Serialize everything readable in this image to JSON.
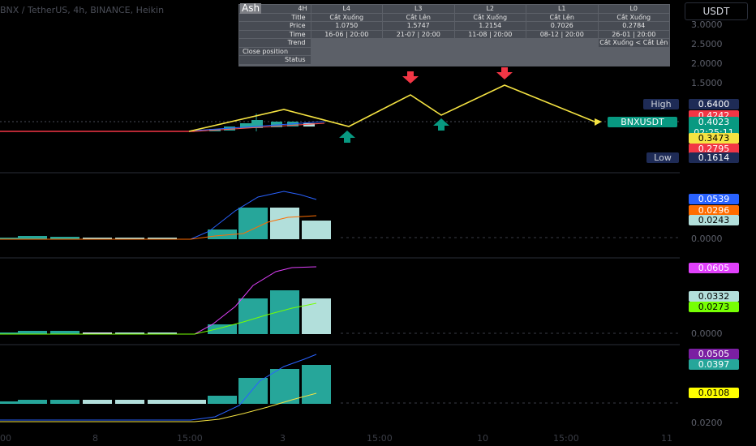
{
  "header": {
    "symbol_line": "BNX / TetherUS, 4h, BINANCE, Heikin",
    "timeframe_cell": "4H",
    "currency_button": "USDT",
    "script_badge": "Ash"
  },
  "info_table": {
    "columns": [
      "L4",
      "L3",
      "L2",
      "L1",
      "L0"
    ],
    "row_labels": [
      "Title",
      "Price",
      "Time",
      "Trend",
      "Close position",
      "Status"
    ],
    "title": [
      "Cắt Xuống",
      "Cắt Lên",
      "Cắt Xuống",
      "Cắt Lên",
      "Cắt Xuống"
    ],
    "price": [
      "1.0750",
      "1.5747",
      "1.2154",
      "0.7026",
      "0.2784"
    ],
    "time": [
      "16-06 | 20:00",
      "21-07 | 20:00",
      "11-08 | 20:00",
      "08-12 | 20:00",
      "26-01 | 20:00"
    ],
    "status_note": "Cắt Xuống < Cắt Lên"
  },
  "price_scale": {
    "main": [
      "3.0000",
      "2.5000",
      "2.0000",
      "1.5000"
    ],
    "pane1": [
      "0.0000"
    ],
    "pane2": [
      "0.0000"
    ],
    "pane3": [
      "0.0200"
    ]
  },
  "price_tags": {
    "high_label": "High",
    "high_value": "0.6400",
    "v1": "0.4242",
    "symbol": "BNXUSDT",
    "last": "0.4023",
    "countdown": "02:25:11",
    "v2": "0.3473",
    "v3": "0.2795",
    "low_label": "Low",
    "low_value": "0.1614"
  },
  "pane_tags": {
    "p1": [
      "0.0539",
      "0.0296",
      "0.0243"
    ],
    "p2": [
      "0.0605",
      "0.0332",
      "0.0273"
    ],
    "p3": [
      "0.0505",
      "0.0397",
      "0.0108"
    ]
  },
  "time_axis": [
    "00",
    "8",
    "15:00",
    "3",
    "15:00",
    "10",
    "15:00",
    "11"
  ],
  "colors": {
    "zigzag": "#f5e342",
    "up": "#089981",
    "down": "#f23645",
    "teal": "#26a69a",
    "blue": "#2962ff",
    "orange": "#ff6d00",
    "magenta": "#e040fb",
    "lime": "#76ff03",
    "purple": "#7b1fa2",
    "yellow": "#ffeb3b"
  }
}
